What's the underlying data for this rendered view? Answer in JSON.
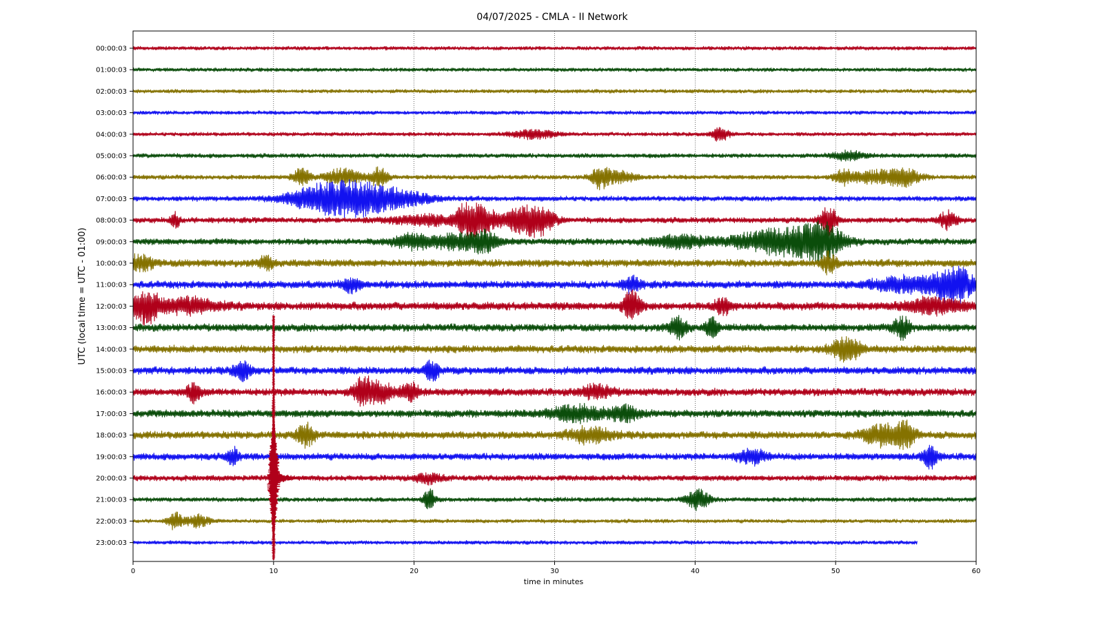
{
  "chart_data": {
    "type": "line",
    "title": "04/07/2025 - CMLA - II Network",
    "xlabel": "time in minutes",
    "ylabel": "UTC (local time = UTC - 01:00)",
    "xlim": [
      0,
      60
    ],
    "x_ticks": [
      "0",
      "10",
      "20",
      "30",
      "40",
      "50",
      "60"
    ],
    "grid": "vertical dotted lines at 10, 20, 30, 40, 50",
    "colors": [
      "#b0001a",
      "#0b4d0b",
      "#857200",
      "#1212f0"
    ],
    "rows": [
      {
        "label": "00:00:03",
        "amp": 3
      },
      {
        "label": "01:00:03",
        "amp": 3
      },
      {
        "label": "02:00:03",
        "amp": 3
      },
      {
        "label": "03:00:03",
        "amp": 3
      },
      {
        "label": "04:00:03",
        "amp": 3,
        "events": [
          [
            28.5,
            6,
            1.5
          ],
          [
            41.8,
            10,
            0.6
          ]
        ]
      },
      {
        "label": "05:00:03",
        "amp": 3.5,
        "events": [
          [
            51,
            6,
            1.2
          ]
        ]
      },
      {
        "label": "06:00:03",
        "amp": 3.5,
        "events": [
          [
            12,
            12,
            0.6
          ],
          [
            15,
            12,
            1.2
          ],
          [
            17.5,
            14,
            0.6
          ],
          [
            33.2,
            14,
            0.6
          ],
          [
            34.5,
            8,
            1.2
          ],
          [
            50.5,
            10,
            0.6
          ],
          [
            53,
            9,
            2
          ],
          [
            55,
            9,
            1
          ]
        ]
      },
      {
        "label": "07:00:03",
        "amp": 4,
        "events": [
          [
            13.5,
            18,
            2.5
          ],
          [
            16,
            14,
            2
          ],
          [
            18.5,
            12,
            2.5
          ]
        ]
      },
      {
        "label": "08:00:03",
        "amp": 4.5,
        "events": [
          [
            3,
            10,
            0.3
          ],
          [
            21,
            7,
            2.5
          ],
          [
            23.8,
            22,
            0.8
          ],
          [
            25,
            14,
            1
          ],
          [
            27.5,
            16,
            1.2
          ],
          [
            29,
            18,
            1
          ],
          [
            49.5,
            20,
            0.6
          ],
          [
            58,
            12,
            0.6
          ]
        ]
      },
      {
        "label": "09:00:03",
        "amp": 5,
        "events": [
          [
            20,
            10,
            1.5
          ],
          [
            23,
            10,
            1.5
          ],
          [
            25,
            14,
            1
          ],
          [
            39,
            8,
            2
          ],
          [
            46,
            18,
            3
          ],
          [
            49,
            22,
            1.5
          ]
        ]
      },
      {
        "label": "10:00:03",
        "amp": 6,
        "events": [
          [
            0.5,
            10,
            1
          ],
          [
            9.5,
            10,
            0.5
          ],
          [
            49.5,
            14,
            0.5
          ]
        ]
      },
      {
        "label": "11:00:03",
        "amp": 6,
        "events": [
          [
            15.5,
            10,
            0.6
          ],
          [
            35.5,
            10,
            0.6
          ],
          [
            55.5,
            10,
            3
          ],
          [
            58.5,
            24,
            1.2
          ]
        ]
      },
      {
        "label": "12:00:03",
        "amp": 6.5,
        "events": [
          [
            0.8,
            24,
            1
          ],
          [
            4,
            10,
            2
          ],
          [
            35.5,
            20,
            0.6
          ],
          [
            42,
            10,
            0.6
          ],
          [
            57,
            10,
            2
          ]
        ]
      },
      {
        "label": "13:00:03",
        "amp": 6,
        "events": [
          [
            38.8,
            16,
            0.6
          ],
          [
            41.2,
            14,
            0.4
          ],
          [
            54.7,
            14,
            0.6
          ]
        ]
      },
      {
        "label": "14:00:03",
        "amp": 6,
        "events": [
          [
            50.8,
            18,
            1
          ]
        ]
      },
      {
        "label": "15:00:03",
        "amp": 6,
        "events": [
          [
            7.8,
            12,
            0.6
          ],
          [
            21.2,
            16,
            0.5
          ]
        ]
      },
      {
        "label": "16:00:03",
        "amp": 6,
        "events": [
          [
            4.3,
            12,
            0.5
          ],
          [
            16.3,
            18,
            0.6
          ],
          [
            17.5,
            14,
            1
          ],
          [
            19.7,
            14,
            0.6
          ],
          [
            33,
            10,
            1
          ]
        ]
      },
      {
        "label": "17:00:03",
        "amp": 6,
        "events": [
          [
            31.5,
            10,
            2
          ],
          [
            35,
            10,
            1
          ]
        ]
      },
      {
        "label": "18:00:03",
        "amp": 6,
        "events": [
          [
            12.3,
            16,
            0.6
          ],
          [
            32.5,
            10,
            1.5
          ],
          [
            53.5,
            14,
            1.5
          ],
          [
            55,
            14,
            0.6
          ]
        ]
      },
      {
        "label": "19:00:03",
        "amp": 5.5,
        "events": [
          [
            7.1,
            12,
            0.4
          ],
          [
            44,
            10,
            1
          ],
          [
            56.7,
            16,
            0.5
          ]
        ]
      },
      {
        "label": "20:00:03",
        "amp": 4.5,
        "events": [
          [
            21,
            6,
            1
          ]
        ]
      },
      {
        "label": "21:00:03",
        "amp": 3.5,
        "events": [
          [
            21.1,
            14,
            0.4
          ],
          [
            40.2,
            14,
            0.8
          ]
        ]
      },
      {
        "label": "22:00:03",
        "amp": 3,
        "events": [
          [
            3,
            12,
            0.5
          ],
          [
            4.6,
            8,
            0.8
          ]
        ]
      },
      {
        "label": "23:00:03",
        "amp": 3,
        "end": 55.8
      }
    ],
    "major_event": {
      "minute": 10,
      "spans_rows": [
        "15:00:03",
        "23:00:03"
      ],
      "peak_row": "20:00:03",
      "color": "#b0001a"
    }
  }
}
